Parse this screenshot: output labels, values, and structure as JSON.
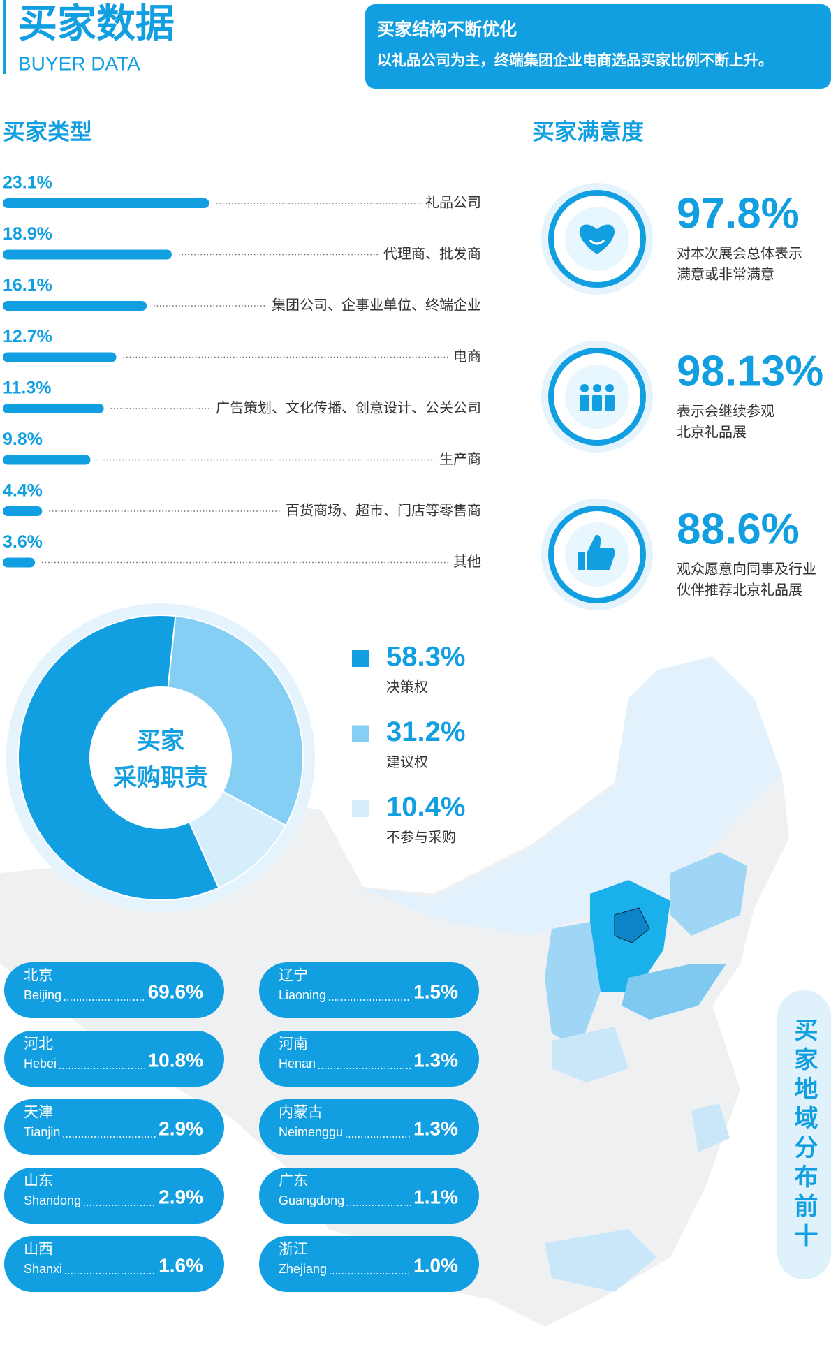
{
  "header": {
    "title": "买家数据",
    "subtitle": "BUYER DATA",
    "banner_title": "买家结构不断优化",
    "banner_text": "以礼品公司为主，终端集团企业电商选品买家比例不断上升。"
  },
  "chart_data": [
    {
      "type": "bar",
      "title": "买家类型",
      "categories": [
        "礼品公司",
        "代理商、批发商",
        "集团公司、企事业单位、终端企业",
        "电商",
        "广告策划、文化传播、创意设计、公关公司",
        "生产商",
        "百货商场、超市、门店等零售商",
        "其他"
      ],
      "values": [
        23.1,
        18.9,
        16.1,
        12.7,
        11.3,
        9.8,
        4.4,
        3.6
      ],
      "value_labels": [
        "23.1%",
        "18.9%",
        "16.1%",
        "12.7%",
        "11.3%",
        "9.8%",
        "4.4%",
        "3.6%"
      ],
      "color": "#129fe2"
    },
    {
      "type": "pie",
      "title_lines": [
        "买家",
        "采购职责"
      ],
      "categories": [
        "决策权",
        "建议权",
        "不参与采购"
      ],
      "values": [
        58.3,
        31.2,
        10.4
      ],
      "value_labels": [
        "58.3%",
        "31.2%",
        "10.4%"
      ],
      "colors": [
        "#129fe2",
        "#86cff4",
        "#d4eefc"
      ]
    }
  ],
  "satisfaction": {
    "title": "买家满意度",
    "items": [
      {
        "value": "97.8%",
        "lines": [
          "对本次展会总体表示",
          "满意或非常满意"
        ]
      },
      {
        "value": "98.13%",
        "lines": [
          "表示会继续参观",
          "北京礼品展"
        ]
      },
      {
        "value": "88.6%",
        "lines": [
          "观众愿意向同事及行业",
          "伙伴推荐北京礼品展"
        ]
      }
    ]
  },
  "regions": {
    "title": "买家地域分布前十",
    "items": [
      {
        "name": "北京",
        "name_en": "Beijing",
        "share": "69.6%"
      },
      {
        "name": "河北",
        "name_en": "Hebei",
        "share": "10.8%"
      },
      {
        "name": "天津",
        "name_en": "Tianjin",
        "share": "2.9%"
      },
      {
        "name": "山东",
        "name_en": "Shandong",
        "share": "2.9%"
      },
      {
        "name": "山西",
        "name_en": "Shanxi",
        "share": "1.6%"
      },
      {
        "name": "辽宁",
        "name_en": "Liaoning",
        "share": "1.5%"
      },
      {
        "name": "河南",
        "name_en": "Henan",
        "share": "1.3%"
      },
      {
        "name": "内蒙古",
        "name_en": "Neimenggu",
        "share": "1.3%"
      },
      {
        "name": "广东",
        "name_en": "Guangdong",
        "share": "1.1%"
      },
      {
        "name": "浙江",
        "name_en": "Zhejiang",
        "share": "1.0%"
      }
    ]
  }
}
